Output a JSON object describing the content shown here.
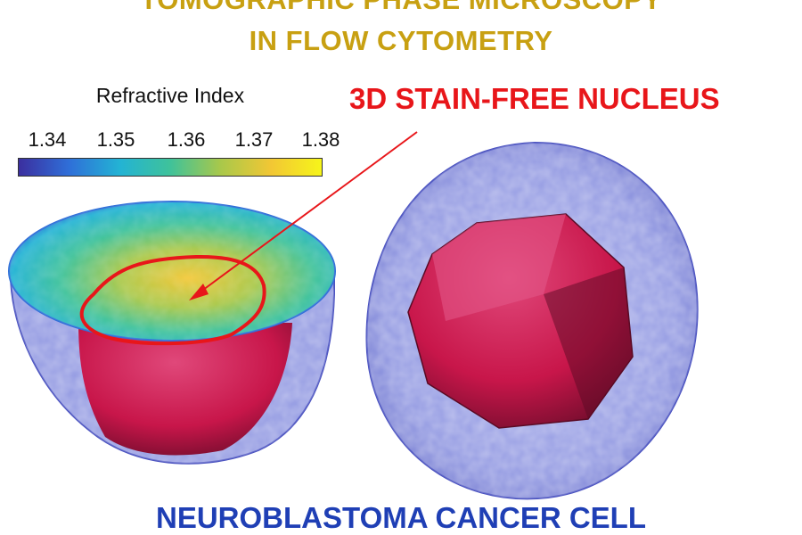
{
  "title": {
    "line1": "TOMOGRAPHIC PHASE MICROSCOPY",
    "line2": "IN FLOW CYTOMETRY"
  },
  "colorbar": {
    "label": "Refractive Index",
    "ticks": [
      "1.34",
      "1.35",
      "1.36",
      "1.37",
      "1.38"
    ],
    "colormap": [
      "#3b2f9f",
      "#2f6fd8",
      "#23b3d4",
      "#3fc29a",
      "#a9c84a",
      "#f2c734",
      "#f6f51a"
    ]
  },
  "annotation": {
    "label": "3D STAIN-FREE NUCLEUS",
    "color": "#e8161a"
  },
  "caption": "NEUROBLASTOMA CANCER CELL",
  "colors": {
    "title": "#c8a012",
    "membrane": "#6f78d8",
    "nucleus": "#c8164a",
    "caption": "#1f3fb5"
  }
}
